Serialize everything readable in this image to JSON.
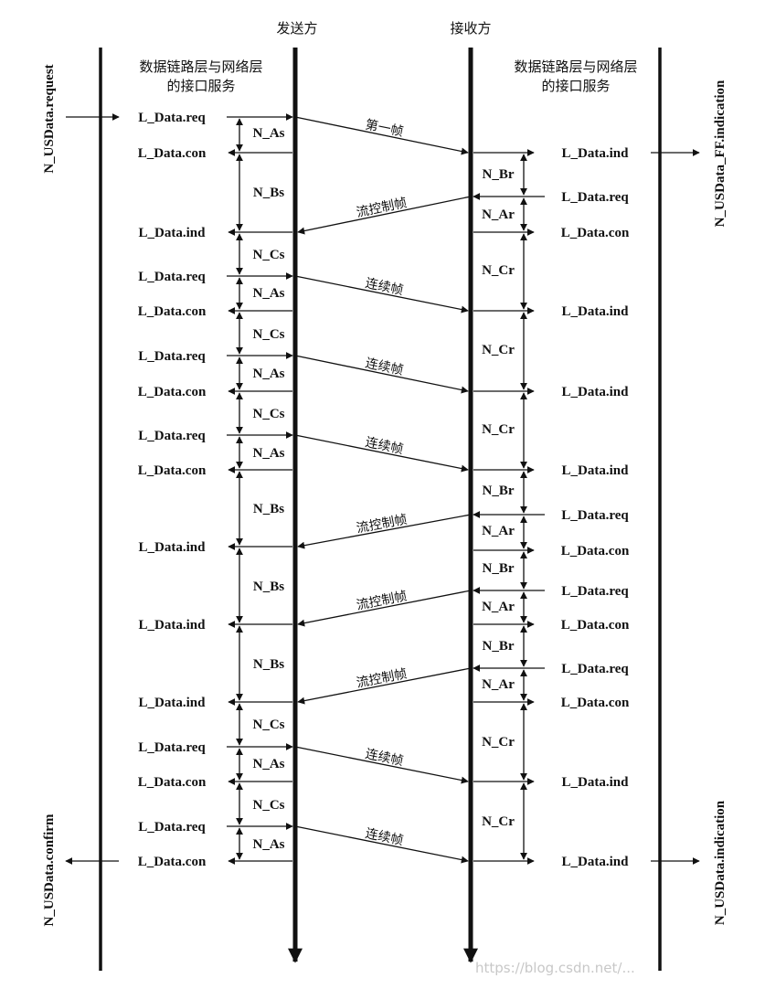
{
  "headers": {
    "sender": "发送方",
    "receiver": "接收方"
  },
  "interface_left": [
    "数据链路层与网络层",
    "的接口服务"
  ],
  "interface_right": [
    "数据链路层与网络层",
    "的接口服务"
  ],
  "side_labels": {
    "top_left": "N_USData.request",
    "top_right": "N_USData_FF.indication",
    "bottom_left": "N_USData.confirm",
    "bottom_right": "N_USData.indication"
  },
  "watermark": "https://blog.csdn.net/...",
  "left_events": [
    "L_Data.req",
    "L_Data.con",
    "L_Data.ind",
    "L_Data.req",
    "L_Data.con",
    "L_Data.req",
    "L_Data.con",
    "L_Data.req",
    "L_Data.con",
    "L_Data.ind",
    "L_Data.ind",
    "L_Data.ind",
    "L_Data.req",
    "L_Data.con",
    "L_Data.req",
    "L_Data.con"
  ],
  "right_events": [
    "L_Data.ind",
    "L_Data.req",
    "L_Data.con",
    "L_Data.ind",
    "L_Data.ind",
    "L_Data.ind",
    "L_Data.req",
    "L_Data.con",
    "L_Data.req",
    "L_Data.con",
    "L_Data.req",
    "L_Data.con",
    "L_Data.ind",
    "L_Data.ind"
  ],
  "frames": [
    "第一帧",
    "流控制帧",
    "连续帧",
    "连续帧",
    "连续帧",
    "流控制帧",
    "流控制帧",
    "流控制帧",
    "连续帧",
    "连续帧"
  ],
  "sender_timers": [
    "N_As",
    "N_Bs",
    "N_Cs",
    "N_As",
    "N_Cs",
    "N_As",
    "N_Cs",
    "N_As",
    "N_Bs",
    "N_Bs",
    "N_Bs",
    "N_Cs",
    "N_As",
    "N_Cs",
    "N_As"
  ],
  "receiver_timers": [
    "N_Br",
    "N_Ar",
    "N_Cr",
    "N_Cr",
    "N_Cr",
    "N_Br",
    "N_Ar",
    "N_Br",
    "N_Ar",
    "N_Br",
    "N_Ar",
    "N_Cr",
    "N_Cr"
  ]
}
